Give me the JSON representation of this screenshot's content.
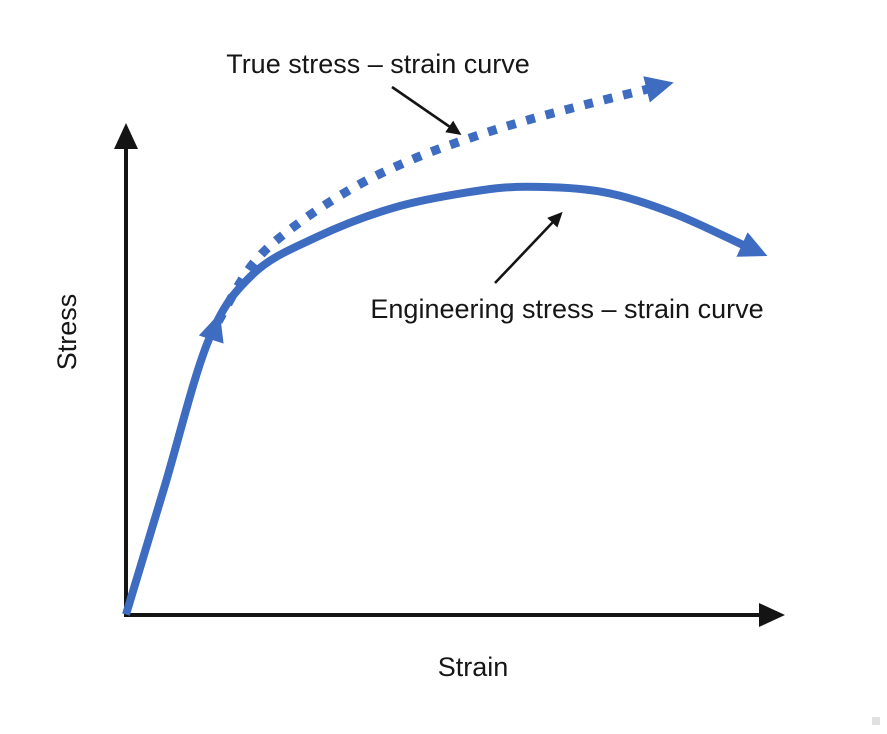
{
  "labels": {
    "true_curve": "True stress – strain curve",
    "engineering_curve": "Engineering stress – strain curve",
    "x_axis": "Strain",
    "y_axis": "Stress"
  },
  "colors": {
    "curve_blue": "#3E6CC0",
    "axis_black": "#141414",
    "annotation_black": "#141414",
    "text_black": "#161616",
    "background": "#FFFFFF",
    "artifact_gray": "#C9C9C9"
  },
  "chart_data": {
    "type": "line",
    "title": "",
    "xlabel": "Strain",
    "ylabel": "Stress",
    "axis_style": "schematic axes with arrowheads, no ticks, no numeric scale",
    "grid": false,
    "legend": "none (curves identified by arrow-annotated text labels)",
    "x_range_norm": [
      0,
      1
    ],
    "y_range_norm": [
      0,
      1
    ],
    "series": [
      {
        "name": "Engineering stress – strain curve",
        "line_style": "solid",
        "color": "#3E6CC0",
        "arrow_at_end": true,
        "points_norm": [
          [
            0.0,
            0.0
          ],
          [
            0.06,
            0.24
          ],
          [
            0.13,
            0.52
          ],
          [
            0.2,
            0.645
          ],
          [
            0.3,
            0.715
          ],
          [
            0.42,
            0.77
          ],
          [
            0.54,
            0.8
          ],
          [
            0.63,
            0.81
          ],
          [
            0.75,
            0.8
          ],
          [
            0.86,
            0.76
          ],
          [
            0.97,
            0.7
          ]
        ]
      },
      {
        "name": "True stress – strain curve",
        "line_style": "dashed",
        "color": "#3E6CC0",
        "arrow_at_end": true,
        "points_norm": [
          [
            0.145,
            0.555
          ],
          [
            0.2,
            0.665
          ],
          [
            0.27,
            0.74
          ],
          [
            0.36,
            0.81
          ],
          [
            0.45,
            0.862
          ],
          [
            0.54,
            0.902
          ],
          [
            0.63,
            0.936
          ],
          [
            0.73,
            0.968
          ],
          [
            0.82,
            0.995
          ]
        ]
      }
    ],
    "annotations": [
      {
        "text": "True stress – strain curve",
        "arrow": "from label down-right to the dashed curve"
      },
      {
        "text": "Engineering stress – strain curve",
        "arrow": "from label up-right to the solid curve"
      },
      {
        "marker": "blue arrowhead on the shared initial elastic slope pointing up along the line"
      }
    ]
  }
}
